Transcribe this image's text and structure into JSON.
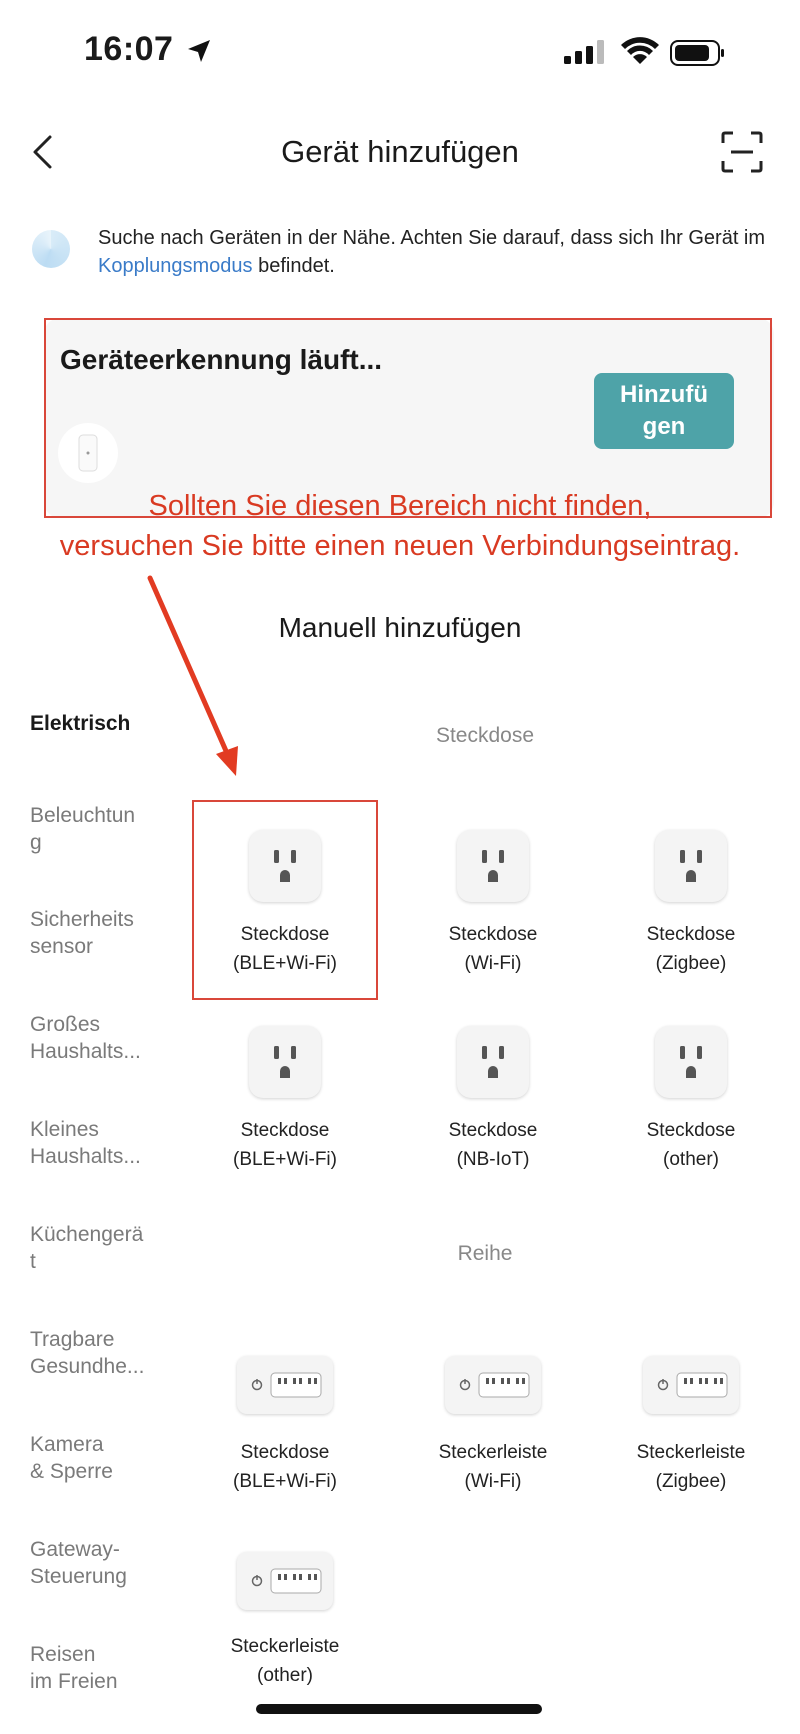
{
  "status_bar": {
    "time": "16:07"
  },
  "header": {
    "title": "Gerät hinzufügen"
  },
  "info": {
    "text_before": "Suche nach Geräten in der Nähe. Achten Sie darauf, dass sich Ihr Gerät im ",
    "link": "Kopplungsmodus",
    "text_after": " befindet."
  },
  "discovery": {
    "title": "Geräteerkennung läuft...",
    "add_label_1": "Hinzufü",
    "add_label_2": "gen"
  },
  "annotation": {
    "line1": "Sollten Sie diesen Bereich nicht finden,",
    "line2": "versuchen Sie bitte einen neuen Verbindungseintrag."
  },
  "manual": {
    "title": "Manuell hinzufügen"
  },
  "sidebar": [
    {
      "line1": "Elektrisch",
      "line2": ""
    },
    {
      "line1": "Beleuchtun",
      "line2": "g"
    },
    {
      "line1": "Sicherheits",
      "line2": "sensor"
    },
    {
      "line1": "Großes",
      "line2": "Haushalts..."
    },
    {
      "line1": "Kleines",
      "line2": "Haushalts..."
    },
    {
      "line1": "Küchengerä",
      "line2": "t"
    },
    {
      "line1": "Tragbare",
      "line2": "Gesundhe..."
    },
    {
      "line1": "Kamera",
      "line2": "& Sperre"
    },
    {
      "line1": "Gateway-",
      "line2": "Steuerung"
    },
    {
      "line1": "Reisen",
      "line2": "im Freien"
    }
  ],
  "sections": [
    {
      "label": "Steckdose"
    },
    {
      "label": "Reihe"
    }
  ],
  "tiles": [
    {
      "name": "Steckdose",
      "sub": "(BLE+Wi-Fi)",
      "icon": "outlet-icon"
    },
    {
      "name": "Steckdose",
      "sub": "(Wi-Fi)",
      "icon": "outlet-icon"
    },
    {
      "name": "Steckdose",
      "sub": "(Zigbee)",
      "icon": "outlet-icon"
    },
    {
      "name": "Steckdose",
      "sub": "(BLE+Wi-Fi)",
      "icon": "outlet-icon"
    },
    {
      "name": "Steckdose",
      "sub": "(NB-IoT)",
      "icon": "outlet-icon"
    },
    {
      "name": "Steckdose",
      "sub": "(other)",
      "icon": "outlet-icon"
    },
    {
      "name": "Steckdose",
      "sub": "(BLE+Wi-Fi)",
      "icon": "power-strip-icon"
    },
    {
      "name": "Steckerleiste",
      "sub": "(Wi-Fi)",
      "icon": "power-strip-icon"
    },
    {
      "name": "Steckerleiste",
      "sub": "(Zigbee)",
      "icon": "power-strip-icon"
    },
    {
      "name": "Steckerleiste",
      "sub": "(other)",
      "icon": "power-strip-icon"
    }
  ],
  "colors": {
    "accent_button": "#4ea3a8",
    "link": "#3a7bc8",
    "annotation_red": "#d93a22"
  }
}
